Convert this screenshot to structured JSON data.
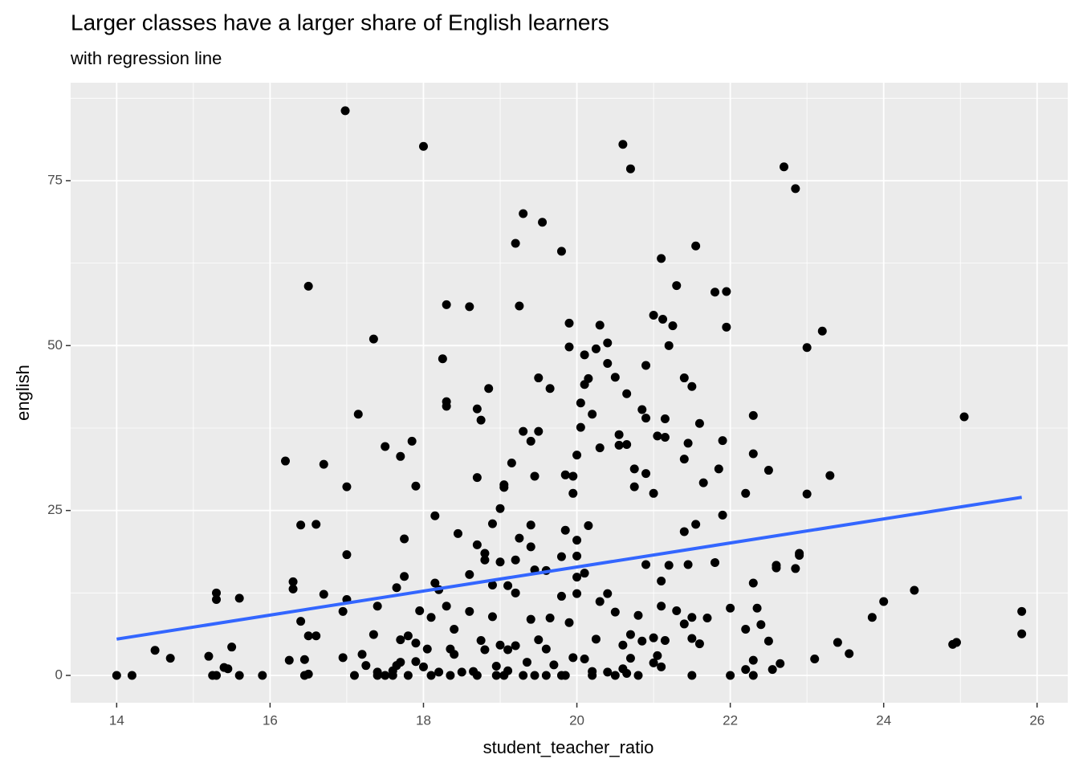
{
  "chart_data": {
    "type": "scatter",
    "title": "Larger classes have a larger share of English learners",
    "subtitle": "with regression line",
    "x_label": "student_teacher_ratio",
    "y_label": "english",
    "xlim": [
      13.4,
      26.4
    ],
    "ylim": [
      -4.14,
      89.85
    ],
    "xticks": [
      14,
      16,
      18,
      20,
      22,
      24,
      26
    ],
    "yticks": [
      0,
      25,
      50,
      75
    ],
    "x_minor_grid": [
      15,
      17,
      19,
      21,
      23,
      25
    ],
    "y_minor_grid": [
      12.5,
      37.5,
      62.5,
      87.5
    ],
    "grid": true,
    "series": [
      {
        "type": "scatter",
        "color": "#000000",
        "x": [
          14.0,
          14.2,
          14.5,
          14.7,
          15.2,
          15.25,
          15.3,
          15.3,
          15.3,
          15.4,
          15.45,
          15.5,
          15.6,
          15.6,
          15.9,
          16.2,
          16.25,
          16.3,
          16.3,
          16.4,
          16.4,
          16.45,
          16.45,
          16.5,
          16.5,
          16.5,
          16.6,
          16.6,
          16.7,
          16.7,
          16.95,
          16.95,
          17.0,
          17.0,
          17.0,
          16.98,
          17.1,
          17.15,
          17.2,
          17.25,
          17.35,
          17.35,
          17.4,
          17.4,
          17.4,
          17.5,
          17.6,
          17.65,
          17.65,
          17.7,
          17.7,
          17.7,
          17.75,
          17.75,
          17.8,
          17.85,
          17.9,
          17.9,
          18.0,
          17.95,
          18.05,
          18.1,
          18.1,
          18.15,
          18.15,
          18.2,
          18.25,
          18.3,
          18.3,
          18.3,
          18.3,
          18.35,
          18.35,
          18.4,
          18.45,
          18.6,
          18.6,
          18.6,
          18.65,
          18.7,
          18.7,
          18.7,
          18.75,
          18.75,
          18.8,
          18.8,
          18.85,
          18.9,
          18.9,
          18.95,
          19.0,
          19.0,
          19.05,
          19.05,
          19.1,
          19.1,
          19.15,
          19.2,
          19.2,
          19.2,
          19.25,
          19.25,
          19.3,
          19.3,
          19.35,
          19.4,
          19.4,
          19.4,
          19.45,
          19.45,
          19.5,
          19.5,
          19.55,
          19.6,
          19.65,
          19.65,
          19.8,
          19.8,
          19.8,
          19.85,
          19.85,
          19.9,
          19.9,
          19.95,
          19.95,
          20.0,
          20.0,
          20.0,
          20.05,
          20.05,
          20.1,
          20.1,
          20.15,
          20.15,
          20.2,
          20.25,
          20.3,
          20.3,
          20.4,
          20.4,
          20.5,
          20.55,
          20.55,
          20.65,
          20.65,
          20.6,
          20.7,
          20.75,
          20.75,
          20.85,
          20.9,
          20.9,
          20.9,
          21.0,
          21.0,
          21.05,
          21.1,
          21.12,
          21.15,
          21.15,
          21.2,
          21.25,
          21.3,
          21.4,
          21.4,
          21.45,
          21.5,
          21.55,
          21.6,
          21.65,
          21.8,
          21.85,
          21.9,
          21.95,
          21.95,
          21.9,
          22.2,
          22.3,
          22.3,
          22.5,
          22.7,
          22.85,
          23.0,
          23.2,
          23.0,
          23.3,
          22.9,
          22.9,
          22.85,
          22.6,
          22.6,
          22.3,
          22.35,
          22.4,
          22.0,
          22.2,
          22.5,
          22.55,
          22.65,
          23.1,
          23.4,
          23.55,
          23.85,
          24.0,
          24.4,
          24.9,
          24.95,
          25.05,
          25.8,
          25.8,
          22.0,
          22.2,
          22.3,
          22.3,
          21.5,
          21.5,
          21.6,
          21.7,
          21.5,
          21.55,
          21.45,
          21.4,
          21.8,
          21.2,
          21.1,
          21.3,
          21.4,
          21.0,
          21.05,
          21.1,
          21.15,
          21.1,
          20.9,
          20.8,
          20.7,
          20.6,
          20.6,
          20.5,
          20.4,
          20.3,
          20.25,
          20.2,
          20.1,
          20.1,
          20.0,
          20.0,
          19.9,
          19.8,
          19.7,
          19.6,
          19.5,
          19.4,
          19.3,
          19.2,
          19.1,
          19.0,
          18.9,
          18.8,
          18.7,
          18.5,
          18.4,
          18.2,
          18.0,
          17.9,
          17.8,
          17.6,
          17.5,
          20.5,
          20.8,
          21.0,
          19.6,
          19.85,
          20.2,
          20.4,
          19.95,
          20.7,
          20.65,
          19.45,
          20.85,
          18.95,
          19.05
        ],
        "values": [
          0,
          0,
          3.8,
          2.6,
          2.9,
          0,
          0,
          12.5,
          11.5,
          1.2,
          1,
          4.3,
          0,
          11.7,
          0,
          32.5,
          2.3,
          14.2,
          13.1,
          8.2,
          22.8,
          2.4,
          0,
          6,
          0.2,
          59,
          6,
          22.9,
          12.3,
          32,
          2.7,
          9.7,
          11.5,
          18.3,
          28.6,
          85.6,
          0,
          39.6,
          3.2,
          1.5,
          6.2,
          51,
          0.5,
          10.5,
          0,
          34.7,
          0,
          1.5,
          13.3,
          5.4,
          33.2,
          2,
          20.7,
          15,
          6,
          35.5,
          4.9,
          28.7,
          80.2,
          9.8,
          4,
          0,
          8.8,
          24.2,
          14,
          13,
          48,
          41.5,
          40.8,
          56.2,
          10.5,
          0,
          4,
          7,
          21.5,
          55.9,
          15.3,
          9.7,
          0.6,
          19.8,
          40.4,
          30,
          38.7,
          5.3,
          18.5,
          17.5,
          43.5,
          23,
          13.7,
          0,
          17.2,
          25.3,
          28.5,
          28.9,
          13.6,
          3.9,
          32.2,
          17.5,
          12.5,
          65.5,
          20.8,
          56,
          70,
          37,
          2,
          35.5,
          19.5,
          22.8,
          16,
          30.2,
          45.1,
          37,
          68.7,
          15.9,
          8.7,
          43.5,
          64.3,
          18,
          12,
          22,
          30.4,
          53.4,
          49.8,
          27.6,
          30.2,
          33.4,
          20.5,
          18.1,
          37.6,
          41.3,
          44.1,
          48.6,
          45,
          22.7,
          39.6,
          49.5,
          53.1,
          34.5,
          50.4,
          47.3,
          45.2,
          36.5,
          34.9,
          35,
          42.7,
          80.5,
          76.8,
          31.3,
          28.6,
          40.3,
          30.6,
          47,
          39,
          54.6,
          27.6,
          36.3,
          63.2,
          54,
          38.9,
          36.1,
          50,
          53,
          59.1,
          45.1,
          32.8,
          35.2,
          43.8,
          65.1,
          38.2,
          29.2,
          58.1,
          31.3,
          35.6,
          58.2,
          52.8,
          24.3,
          27.6,
          33.6,
          39.4,
          31.1,
          77.1,
          73.8,
          49.7,
          52.2,
          27.5,
          30.3,
          18.5,
          18.2,
          16.2,
          16.7,
          16.3,
          14,
          10.2,
          7.7,
          10.2,
          7,
          5.2,
          0.9,
          1.8,
          2.5,
          5,
          3.3,
          8.8,
          11.2,
          12.9,
          4.7,
          5,
          39.2,
          9.7,
          6.3,
          0,
          0.9,
          0,
          2.3,
          0,
          8.8,
          4.8,
          8.7,
          5.6,
          22.9,
          16.8,
          21.8,
          17.1,
          16.7,
          14.3,
          9.8,
          7.8,
          5.7,
          3,
          1.3,
          5.3,
          10.5,
          16.8,
          9.1,
          6.2,
          4.6,
          1,
          9.6,
          12.4,
          11.2,
          5.5,
          0.6,
          2.5,
          15.5,
          14.9,
          12.4,
          8,
          0,
          1.6,
          4,
          5.4,
          8.5,
          0,
          4.5,
          0.7,
          4.6,
          8.9,
          3.9,
          0,
          0.5,
          3.2,
          0.5,
          1.3,
          2.1,
          0,
          0.7,
          0,
          0,
          0,
          1.9,
          0,
          0,
          0,
          0.5,
          2.7,
          2.6,
          0.3,
          0,
          5.2,
          1.4,
          0
        ]
      },
      {
        "type": "line",
        "color": "#3366ff",
        "x": [
          14.0,
          25.8
        ],
        "values": [
          5.5,
          27.0
        ]
      }
    ]
  }
}
